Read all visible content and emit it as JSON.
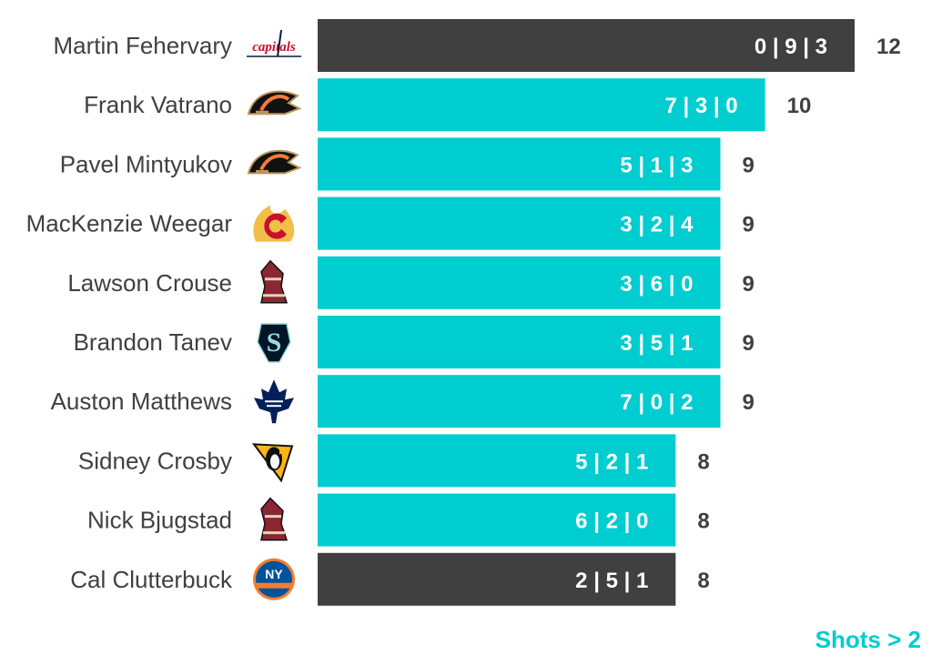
{
  "chart_data": {
    "type": "bar",
    "orientation": "horizontal",
    "categories": [
      "Martin Fehervary",
      "Frank Vatrano",
      "Pavel Mintyukov",
      "MacKenzie Weegar",
      "Lawson Crouse",
      "Brandon Tanev",
      "Auston Matthews",
      "Sidney Crosby",
      "Nick Bjugstad",
      "Cal Clutterbuck"
    ],
    "values": [
      12,
      10,
      9,
      9,
      9,
      9,
      9,
      8,
      8,
      8
    ],
    "breakdown_labels": [
      "0 | 9 | 3",
      "7 | 3 | 0",
      "5 | 1 | 3",
      "3 | 2 | 4",
      "3 | 6 | 0",
      "3 | 5 | 1",
      "7 | 0 | 2",
      "5 | 2 | 1",
      "6 | 2 | 0",
      "2 | 5 | 1"
    ],
    "highlight": [
      true,
      false,
      false,
      false,
      false,
      false,
      false,
      false,
      false,
      true
    ],
    "teams": [
      "capitals",
      "ducks",
      "ducks",
      "flames",
      "coyotes",
      "kraken",
      "maple-leafs",
      "penguins",
      "coyotes",
      "islanders"
    ],
    "xlim": [
      0,
      12
    ],
    "grid": false,
    "legend": "none"
  },
  "note": "Shots > 2",
  "colors": {
    "bar_default": "#00CDD0",
    "bar_highlight": "#404040",
    "label_text": "#404040",
    "note_text": "#00CDD0"
  }
}
